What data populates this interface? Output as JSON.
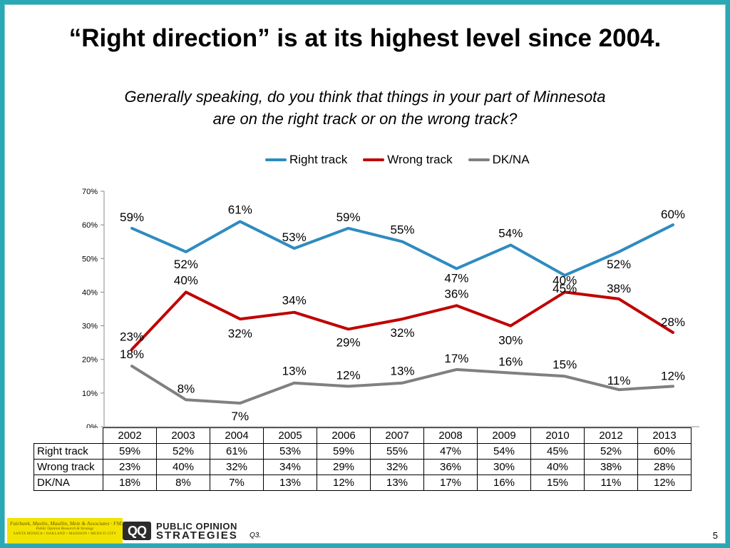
{
  "title": "“Right direction” is at its highest level since 2004.",
  "subtitle_line1": "Generally speaking, do you think that things in your part of Minnesota",
  "subtitle_line2": "are on the right track or on the wrong track?",
  "colors": {
    "frame": "#2aa9b4",
    "right_track": "#2e8bc0",
    "wrong_track": "#c00000",
    "dk_na": "#808080"
  },
  "chart_data": {
    "type": "line",
    "categories": [
      "2002",
      "2003",
      "2004",
      "2005",
      "2006",
      "2007",
      "2008",
      "2009",
      "2010",
      "2012",
      "2013"
    ],
    "series": [
      {
        "name": "Right track",
        "values": [
          59,
          52,
          61,
          53,
          59,
          55,
          47,
          54,
          45,
          52,
          60
        ],
        "labels": [
          "59%",
          "52%",
          "61%",
          "53%",
          "59%",
          "55%",
          "47%",
          "54%",
          "45%",
          "52%",
          "60%"
        ]
      },
      {
        "name": "Wrong track",
        "values": [
          23,
          40,
          32,
          34,
          29,
          32,
          36,
          30,
          40,
          38,
          28
        ],
        "labels": [
          "23%",
          "40%",
          "32%",
          "34%",
          "29%",
          "32%",
          "36%",
          "30%",
          "40%",
          "38%",
          "28%"
        ]
      },
      {
        "name": "DK/NA",
        "values": [
          18,
          8,
          7,
          13,
          12,
          13,
          17,
          16,
          15,
          11,
          12
        ],
        "labels": [
          "18%",
          "8%",
          "7%",
          "13%",
          "12%",
          "13%",
          "17%",
          "16%",
          "15%",
          "11%",
          "12%"
        ]
      }
    ],
    "ylim": [
      0,
      70
    ],
    "yticks": [
      "0%",
      "10%",
      "20%",
      "30%",
      "40%",
      "50%",
      "60%",
      "70%"
    ],
    "legend": "top",
    "grid": false
  },
  "footer": {
    "fm3_line1": "Fairbank, Maslin, Maullin, Metz & Associates · FM3",
    "fm3_line2": "Public Opinion Research & Strategy",
    "fm3_line3": "SANTA MONICA • OAKLAND • MADISON • MEXICO CITY",
    "pos_logo": "QQ",
    "pos_line1": "PUBLIC OPINION",
    "pos_line2": "STRATEGIES",
    "question_ref": "Q3.",
    "slide_number": "5"
  }
}
